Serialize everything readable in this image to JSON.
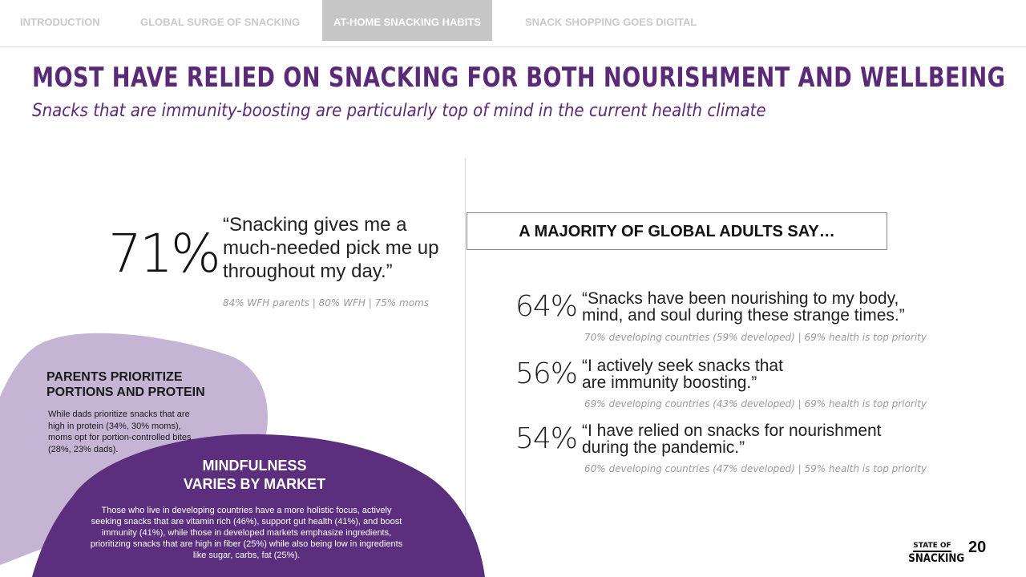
{
  "nav": {
    "tabs": [
      {
        "label": "INTRODUCTION",
        "active": false
      },
      {
        "label": "GLOBAL SURGE OF SNACKING",
        "active": false
      },
      {
        "label": "AT-HOME SNACKING HABITS",
        "active": true
      },
      {
        "label": "SNACK SHOPPING GOES DIGITAL",
        "active": false
      }
    ]
  },
  "title": "MOST HAVE RELIED ON SNACKING FOR BOTH NOURISHMENT AND WELLBEING",
  "subtitle": "Snacks that are immunity-boosting are particularly top of mind in the current health climate",
  "left_stat": {
    "percent": "71%",
    "quote": "“Snacking gives me a much-needed pick me up throughout my day.”",
    "note": "84% WFH parents | 80% WFH | 75% moms"
  },
  "right_panel": {
    "banner": "A MAJORITY OF GLOBAL ADULTS SAY…",
    "stats": [
      {
        "percent": "64%",
        "quote": "“Snacks have been nourishing to my body, mind, and soul during these strange times.”",
        "note": "70% developing countries (59% developed) | 69% health is top priority"
      },
      {
        "percent": "56%",
        "quote": "“I actively seek snacks that are immunity boosting.”",
        "note": "69% developing countries (43% developed) | 69% health is top priority"
      },
      {
        "percent": "54%",
        "quote": "“I have relied on snacks for nourishment during the pandemic.”",
        "note": "60% developing countries (47% developed) | 59% health is top priority"
      }
    ]
  },
  "parents_blob": {
    "title": "PARENTS PRIORITIZE\nPORTIONS AND PROTEIN",
    "body": "While dads prioritize snacks that are high in protein (34%, 30% moms), moms opt for portion-controlled bites (28%, 23% dads)."
  },
  "mindfulness_blob": {
    "title": "MINDFULNESS\nVARIES BY MARKET",
    "body": "Those who live in developing countries have a more holistic focus, actively seeking snacks that are vitamin rich (46%), support gut health (41%), and boost immunity (41%), while those in developed markets emphasize ingredients, prioritizing snacks that are high in fiber (25%) while also being low in ingredients like sugar, carbs, fat (25%)."
  },
  "footer": {
    "logo_top": "STATE OF",
    "logo_main": "SNACKING",
    "page_number": "20"
  },
  "colors": {
    "brand_purple": "#5b2a76",
    "blob_light": "#c5b4d3",
    "blob_dark": "#5c2f7e",
    "active_tab": "#c6c6c6"
  }
}
